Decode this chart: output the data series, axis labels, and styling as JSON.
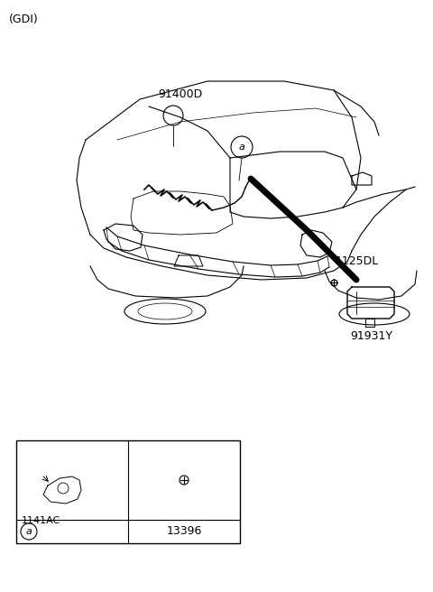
{
  "bg_color": "#ffffff",
  "text_color": "#000000",
  "title_text": "(GDI)",
  "label_91400D": "91400D",
  "label_1125DL": "1125DL",
  "label_91931Y": "91931Y",
  "label_a": "a",
  "label_13396": "13396",
  "label_1141AC": "1141AC",
  "font_size_main": 9,
  "font_size_small": 8,
  "font_size_title": 9
}
